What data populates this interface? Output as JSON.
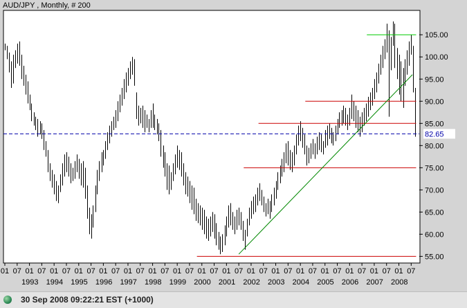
{
  "status": {
    "timestamp": "30 Sep 2008 09:22:21  EST (+1000)"
  },
  "chart_data": {
    "type": "bar",
    "subtype": "ohlc-monthly",
    "title": "AUD/JPY , Monthly, # 200",
    "y_ticks": [
      "55.00",
      "60.00",
      "65.00",
      "70.00",
      "75.00",
      "80.00",
      "85.00",
      "90.00",
      "95.00",
      "100.00",
      "105.00"
    ],
    "y_tick_values": [
      55,
      60,
      65,
      70,
      75,
      80,
      85,
      90,
      95,
      100,
      105
    ],
    "ylim": [
      53.5,
      110.5
    ],
    "xlim": [
      1992.0,
      2008.8
    ],
    "x_month_labels": [
      "01",
      "07"
    ],
    "x_years": [
      "1993",
      "1994",
      "1995",
      "1996",
      "1997",
      "1998",
      "1999",
      "2000",
      "2001",
      "2002",
      "2003",
      "2004",
      "2005",
      "2006",
      "2007",
      "2008"
    ],
    "current_value": {
      "value": 82.65,
      "label": "82.65",
      "color": "#0000aa"
    },
    "colors": {
      "background": "#ffffff",
      "bars": "#000000",
      "support": "#cc0000",
      "top_line": "#00cc00",
      "trend_line": "#008800"
    },
    "support_lines": [
      {
        "y": 90.0,
        "x_from": 2004.2,
        "x_to": 2008.7
      },
      {
        "y": 85.0,
        "x_from": 2002.3,
        "x_to": 2008.7
      },
      {
        "y": 75.0,
        "x_from": 2001.7,
        "x_to": 2008.7
      },
      {
        "y": 55.0,
        "x_from": 1999.8,
        "x_to": 2008.7
      }
    ],
    "top_line": {
      "y": 105.0,
      "x_from": 2006.7,
      "x_to": 2008.7
    },
    "trend_line": {
      "x1": 2001.5,
      "y1": 55.5,
      "x2": 2008.55,
      "y2": 96.0
    },
    "monthly": [
      [
        1992.0,
        103.0,
        101.5
      ],
      [
        1992.08,
        102.5,
        99.5
      ],
      [
        1992.17,
        101.0,
        96.5
      ],
      [
        1992.25,
        99.0,
        93.0
      ],
      [
        1992.33,
        100.5,
        94.0
      ],
      [
        1992.42,
        101.5,
        97.5
      ],
      [
        1992.5,
        103.0,
        98.5
      ],
      [
        1992.58,
        103.5,
        98.0
      ],
      [
        1992.67,
        100.5,
        95.0
      ],
      [
        1992.75,
        98.0,
        93.5
      ],
      [
        1992.83,
        96.0,
        91.5
      ],
      [
        1992.92,
        94.5,
        89.5
      ],
      [
        1993.0,
        91.5,
        88.0
      ],
      [
        1993.08,
        89.5,
        85.5
      ],
      [
        1993.17,
        87.5,
        84.5
      ],
      [
        1993.25,
        86.5,
        83.5
      ],
      [
        1993.33,
        86.0,
        82.0
      ],
      [
        1993.42,
        85.5,
        82.5
      ],
      [
        1993.5,
        85.0,
        81.5
      ],
      [
        1993.58,
        83.5,
        79.0
      ],
      [
        1993.67,
        81.0,
        77.5
      ],
      [
        1993.75,
        79.0,
        74.0
      ],
      [
        1993.83,
        76.0,
        72.0
      ],
      [
        1993.92,
        74.5,
        70.5
      ],
      [
        1994.0,
        73.5,
        69.0
      ],
      [
        1994.08,
        72.0,
        67.5
      ],
      [
        1994.17,
        71.0,
        67.0
      ],
      [
        1994.25,
        73.5,
        69.5
      ],
      [
        1994.33,
        76.0,
        71.0
      ],
      [
        1994.42,
        78.0,
        73.0
      ],
      [
        1994.5,
        78.5,
        74.0
      ],
      [
        1994.58,
        77.5,
        73.0
      ],
      [
        1994.67,
        76.0,
        71.5
      ],
      [
        1994.75,
        75.0,
        72.0
      ],
      [
        1994.83,
        76.5,
        72.5
      ],
      [
        1994.92,
        78.0,
        74.0
      ],
      [
        1995.0,
        77.0,
        72.5
      ],
      [
        1995.08,
        76.0,
        71.0
      ],
      [
        1995.17,
        76.5,
        70.5
      ],
      [
        1995.25,
        75.0,
        68.0
      ],
      [
        1995.33,
        71.0,
        63.5
      ],
      [
        1995.42,
        66.0,
        60.0
      ],
      [
        1995.5,
        64.5,
        59.0
      ],
      [
        1995.58,
        66.5,
        61.5
      ],
      [
        1995.67,
        71.0,
        65.0
      ],
      [
        1995.75,
        74.5,
        69.0
      ],
      [
        1995.83,
        76.5,
        72.0
      ],
      [
        1995.92,
        78.5,
        74.0
      ],
      [
        1996.0,
        79.0,
        75.5
      ],
      [
        1996.08,
        81.0,
        77.0
      ],
      [
        1996.17,
        83.0,
        79.0
      ],
      [
        1996.25,
        84.5,
        80.5
      ],
      [
        1996.33,
        85.5,
        82.0
      ],
      [
        1996.42,
        86.5,
        83.5
      ],
      [
        1996.5,
        88.0,
        84.0
      ],
      [
        1996.58,
        90.0,
        85.5
      ],
      [
        1996.67,
        91.5,
        87.5
      ],
      [
        1996.75,
        93.0,
        89.0
      ],
      [
        1996.83,
        95.0,
        90.5
      ],
      [
        1996.92,
        96.5,
        92.0
      ],
      [
        1997.0,
        97.5,
        93.5
      ],
      [
        1997.08,
        99.0,
        95.0
      ],
      [
        1997.17,
        100.0,
        96.0
      ],
      [
        1997.25,
        99.5,
        93.5
      ],
      [
        1997.33,
        92.0,
        86.0
      ],
      [
        1997.42,
        89.0,
        84.5
      ],
      [
        1997.5,
        88.5,
        85.0
      ],
      [
        1997.58,
        89.0,
        84.0
      ],
      [
        1997.67,
        88.0,
        83.0
      ],
      [
        1997.75,
        87.0,
        84.0
      ],
      [
        1997.83,
        86.0,
        83.0
      ],
      [
        1997.92,
        88.0,
        84.0
      ],
      [
        1998.0,
        89.5,
        84.0
      ],
      [
        1998.08,
        87.0,
        83.5
      ],
      [
        1998.17,
        86.0,
        82.5
      ],
      [
        1998.25,
        85.0,
        81.0
      ],
      [
        1998.33,
        83.5,
        77.5
      ],
      [
        1998.42,
        80.0,
        75.0
      ],
      [
        1998.5,
        78.5,
        73.0
      ],
      [
        1998.58,
        76.0,
        70.0
      ],
      [
        1998.67,
        75.5,
        69.0
      ],
      [
        1998.75,
        74.0,
        70.0
      ],
      [
        1998.83,
        76.0,
        72.0
      ],
      [
        1998.92,
        78.0,
        73.5
      ],
      [
        1999.0,
        80.0,
        75.0
      ],
      [
        1999.08,
        79.0,
        74.5
      ],
      [
        1999.17,
        78.5,
        73.0
      ],
      [
        1999.25,
        76.0,
        71.0
      ],
      [
        1999.33,
        74.0,
        69.0
      ],
      [
        1999.42,
        73.0,
        68.5
      ],
      [
        1999.5,
        72.0,
        67.0
      ],
      [
        1999.58,
        71.0,
        65.5
      ],
      [
        1999.67,
        70.5,
        64.5
      ],
      [
        1999.75,
        68.0,
        63.0
      ],
      [
        1999.83,
        67.0,
        62.5
      ],
      [
        1999.92,
        66.5,
        62.0
      ],
      [
        2000.0,
        66.0,
        61.0
      ],
      [
        2000.08,
        65.5,
        60.0
      ],
      [
        2000.17,
        64.0,
        59.0
      ],
      [
        2000.25,
        63.5,
        58.5
      ],
      [
        2000.33,
        64.0,
        59.5
      ],
      [
        2000.42,
        65.0,
        60.5
      ],
      [
        2000.5,
        64.5,
        59.0
      ],
      [
        2000.58,
        62.5,
        57.5
      ],
      [
        2000.67,
        60.5,
        56.5
      ],
      [
        2000.75,
        59.5,
        55.5
      ],
      [
        2000.83,
        60.0,
        56.0
      ],
      [
        2000.92,
        62.0,
        57.5
      ],
      [
        2001.0,
        64.0,
        59.5
      ],
      [
        2001.08,
        66.5,
        61.5
      ],
      [
        2001.17,
        67.0,
        62.0
      ],
      [
        2001.25,
        65.0,
        61.0
      ],
      [
        2001.33,
        64.0,
        60.0
      ],
      [
        2001.42,
        65.5,
        61.0
      ],
      [
        2001.5,
        66.0,
        62.0
      ],
      [
        2001.58,
        65.0,
        61.0
      ],
      [
        2001.67,
        63.0,
        58.5
      ],
      [
        2001.75,
        61.0,
        56.5
      ],
      [
        2001.83,
        63.5,
        59.5
      ],
      [
        2001.92,
        66.0,
        62.0
      ],
      [
        2002.0,
        67.5,
        63.5
      ],
      [
        2002.08,
        68.5,
        64.5
      ],
      [
        2002.17,
        69.0,
        65.0
      ],
      [
        2002.25,
        70.5,
        66.5
      ],
      [
        2002.33,
        71.5,
        67.5
      ],
      [
        2002.42,
        70.0,
        66.5
      ],
      [
        2002.5,
        68.5,
        65.0
      ],
      [
        2002.58,
        67.0,
        64.0
      ],
      [
        2002.67,
        68.0,
        64.5
      ],
      [
        2002.75,
        67.5,
        63.5
      ],
      [
        2002.83,
        69.0,
        65.0
      ],
      [
        2002.92,
        70.5,
        66.5
      ],
      [
        2003.0,
        72.0,
        68.0
      ],
      [
        2003.08,
        74.0,
        70.0
      ],
      [
        2003.17,
        75.5,
        71.5
      ],
      [
        2003.25,
        77.0,
        73.0
      ],
      [
        2003.33,
        78.5,
        74.0
      ],
      [
        2003.42,
        80.5,
        76.0
      ],
      [
        2003.5,
        81.0,
        75.5
      ],
      [
        2003.58,
        79.0,
        74.5
      ],
      [
        2003.67,
        78.5,
        74.0
      ],
      [
        2003.75,
        80.0,
        75.5
      ],
      [
        2003.83,
        82.5,
        78.0
      ],
      [
        2003.92,
        84.5,
        80.0
      ],
      [
        2004.0,
        85.5,
        81.0
      ],
      [
        2004.08,
        84.0,
        79.5
      ],
      [
        2004.17,
        82.5,
        78.0
      ],
      [
        2004.25,
        80.0,
        75.5
      ],
      [
        2004.33,
        79.5,
        76.0
      ],
      [
        2004.42,
        80.5,
        77.0
      ],
      [
        2004.5,
        81.5,
        78.0
      ],
      [
        2004.58,
        80.5,
        77.0
      ],
      [
        2004.67,
        82.0,
        78.0
      ],
      [
        2004.75,
        83.0,
        79.0
      ],
      [
        2004.83,
        82.5,
        78.5
      ],
      [
        2004.92,
        81.0,
        78.0
      ],
      [
        2005.0,
        83.5,
        79.5
      ],
      [
        2005.08,
        84.5,
        80.0
      ],
      [
        2005.17,
        85.0,
        81.5
      ],
      [
        2005.25,
        84.0,
        80.5
      ],
      [
        2005.33,
        83.0,
        80.0
      ],
      [
        2005.42,
        84.5,
        81.0
      ],
      [
        2005.5,
        86.0,
        82.5
      ],
      [
        2005.58,
        87.5,
        84.0
      ],
      [
        2005.67,
        88.0,
        84.5
      ],
      [
        2005.75,
        89.0,
        85.0
      ],
      [
        2005.83,
        88.5,
        84.5
      ],
      [
        2005.92,
        87.0,
        83.5
      ],
      [
        2006.0,
        88.5,
        84.5
      ],
      [
        2006.08,
        91.5,
        86.0
      ],
      [
        2006.17,
        90.0,
        85.5
      ],
      [
        2006.25,
        89.0,
        84.0
      ],
      [
        2006.33,
        88.0,
        83.0
      ],
      [
        2006.42,
        86.5,
        82.0
      ],
      [
        2006.5,
        87.5,
        83.0
      ],
      [
        2006.58,
        88.5,
        84.5
      ],
      [
        2006.67,
        89.5,
        85.5
      ],
      [
        2006.75,
        91.0,
        86.5
      ],
      [
        2006.83,
        92.0,
        88.0
      ],
      [
        2006.92,
        93.0,
        89.0
      ],
      [
        2007.0,
        95.0,
        90.5
      ],
      [
        2007.08,
        96.5,
        92.0
      ],
      [
        2007.17,
        98.5,
        94.0
      ],
      [
        2007.25,
        100.5,
        96.0
      ],
      [
        2007.33,
        102.5,
        97.5
      ],
      [
        2007.42,
        104.0,
        99.5
      ],
      [
        2007.5,
        107.5,
        101.0
      ],
      [
        2007.58,
        106.0,
        86.5
      ],
      [
        2007.67,
        104.5,
        97.0
      ],
      [
        2007.75,
        108.0,
        102.5
      ],
      [
        2007.83,
        107.5,
        97.5
      ],
      [
        2007.92,
        102.0,
        95.0
      ],
      [
        2008.0,
        100.5,
        91.5
      ],
      [
        2008.08,
        99.0,
        90.0
      ],
      [
        2008.17,
        97.5,
        88.5
      ],
      [
        2008.25,
        99.5,
        93.5
      ],
      [
        2008.33,
        101.5,
        96.0
      ],
      [
        2008.42,
        103.5,
        98.0
      ],
      [
        2008.5,
        105.0,
        100.5
      ],
      [
        2008.58,
        102.5,
        92.0
      ],
      [
        2008.67,
        93.0,
        82.0
      ]
    ]
  }
}
